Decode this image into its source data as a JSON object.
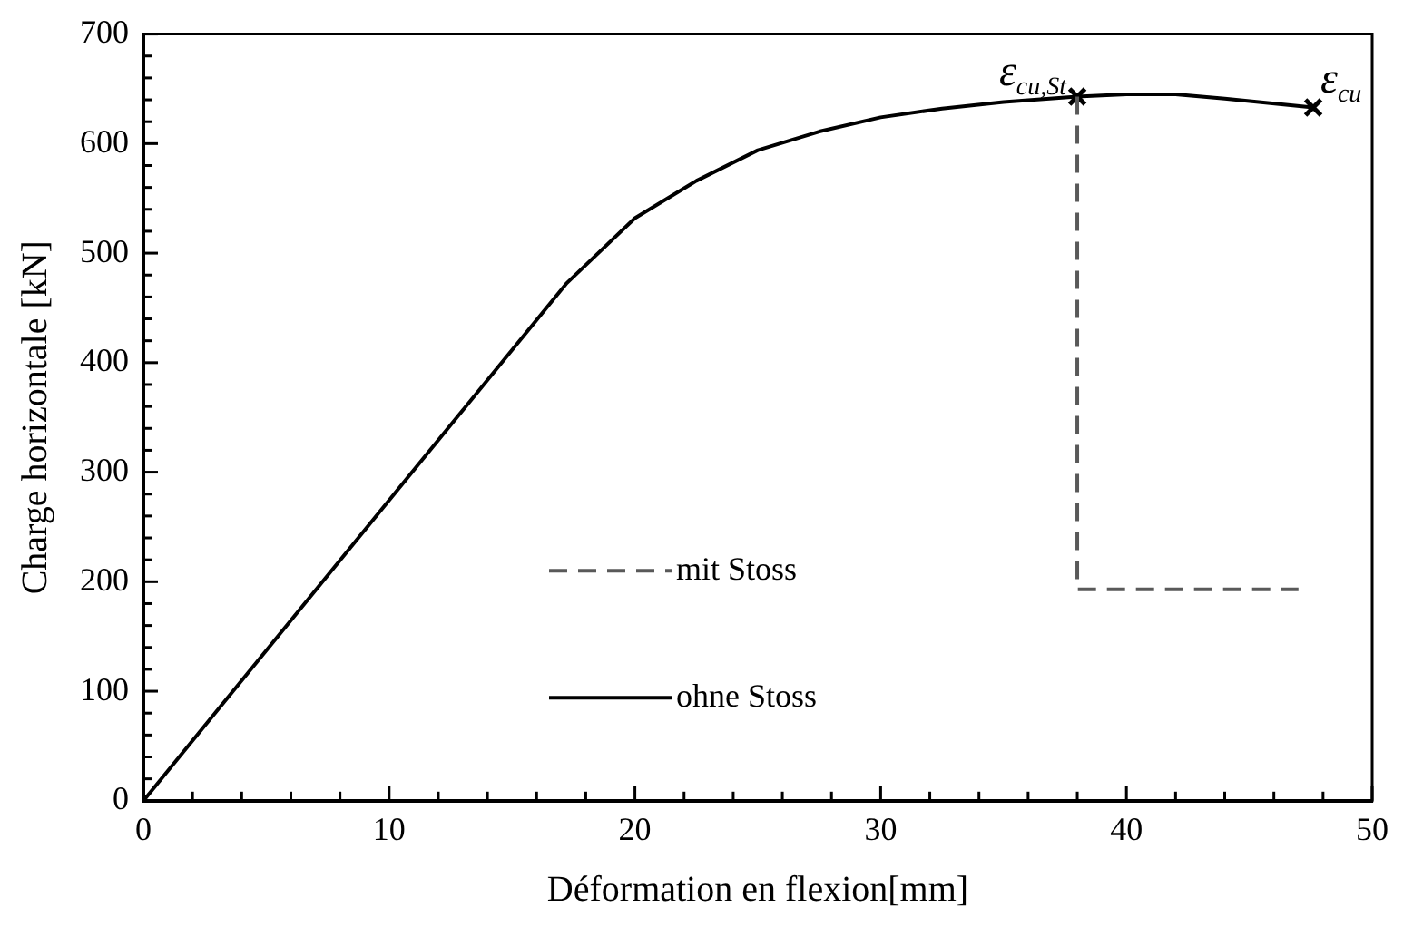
{
  "chart_data": {
    "type": "line",
    "xlabel": "Déformation en flexion[mm]",
    "ylabel": "Charge horizontale [kN]",
    "xlim": [
      0,
      50
    ],
    "ylim": [
      0,
      700
    ],
    "xticks": [
      0,
      {
        "value": 2,
        "label": null
      },
      {
        "value": 4,
        "label": null
      },
      {
        "value": 6,
        "label": null
      },
      {
        "value": 8,
        "label": null
      },
      10,
      {
        "value": 12,
        "label": null
      },
      {
        "value": 14,
        "label": null
      },
      {
        "value": 16,
        "label": null
      },
      {
        "value": 18,
        "label": null
      },
      20,
      {
        "value": 22,
        "label": null
      },
      {
        "value": 24,
        "label": null
      },
      {
        "value": 26,
        "label": null
      },
      {
        "value": 28,
        "label": null
      },
      30,
      {
        "value": 32,
        "label": null
      },
      {
        "value": 34,
        "label": null
      },
      {
        "value": 36,
        "label": null
      },
      {
        "value": 38,
        "label": null
      },
      40,
      {
        "value": 42,
        "label": null
      },
      {
        "value": 44,
        "label": null
      },
      {
        "value": 46,
        "label": null
      },
      {
        "value": 48,
        "label": null
      },
      50
    ],
    "yticks": [
      0,
      {
        "value": 20,
        "label": null
      },
      {
        "value": 40,
        "label": null
      },
      {
        "value": 60,
        "label": null
      },
      {
        "value": 80,
        "label": null
      },
      100,
      {
        "value": 120,
        "label": null
      },
      {
        "value": 140,
        "label": null
      },
      {
        "value": 160,
        "label": null
      },
      {
        "value": 180,
        "label": null
      },
      200,
      {
        "value": 220,
        "label": null
      },
      {
        "value": 240,
        "label": null
      },
      {
        "value": 260,
        "label": null
      },
      {
        "value": 280,
        "label": null
      },
      300,
      {
        "value": 320,
        "label": null
      },
      {
        "value": 340,
        "label": null
      },
      {
        "value": 360,
        "label": null
      },
      {
        "value": 380,
        "label": null
      },
      400,
      {
        "value": 420,
        "label": null
      },
      {
        "value": 440,
        "label": null
      },
      {
        "value": 460,
        "label": null
      },
      {
        "value": 480,
        "label": null
      },
      500,
      {
        "value": 520,
        "label": null
      },
      {
        "value": 540,
        "label": null
      },
      {
        "value": 560,
        "label": null
      },
      {
        "value": 580,
        "label": null
      },
      600,
      {
        "value": 620,
        "label": null
      },
      {
        "value": 640,
        "label": null
      },
      {
        "value": 660,
        "label": null
      },
      {
        "value": 680,
        "label": null
      },
      700
    ],
    "grid": false,
    "legend": "center",
    "series": [
      {
        "name": "mit Stoss",
        "color": "#595959",
        "line_style": "dashed",
        "marker": "none",
        "x": [
          38,
          38,
          47
        ],
        "values": [
          643,
          193,
          193
        ]
      },
      {
        "name": "ohne Stoss",
        "color": "#000000",
        "line_style": "solid",
        "marker": "none",
        "x": [
          0,
          17.2,
          20,
          22.5,
          25,
          27.5,
          30,
          32.5,
          35,
          38,
          40,
          42,
          44,
          47.6
        ],
        "values": [
          0,
          472,
          532,
          566,
          594,
          611,
          624,
          632,
          638,
          643,
          645,
          645,
          641,
          633
        ]
      },
      {
        "type": "scatter",
        "color": "#000000",
        "marker": "cross",
        "x": [
          38,
          47.6
        ],
        "values": [
          643,
          633
        ]
      }
    ],
    "annotations": [
      {
        "text": "ε$_{cu,St}$",
        "x": 38,
        "y": 643
      },
      {
        "text": "ε$_{cu}$",
        "x": 47.6,
        "y": 633
      }
    ]
  }
}
